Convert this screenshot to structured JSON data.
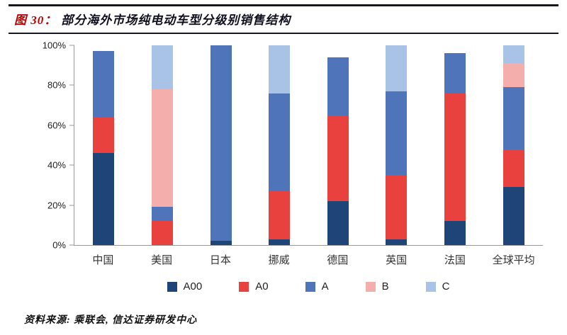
{
  "header": {
    "figure_label": "图 30：",
    "title": "部分海外市场纯电动车型分级别销售结构"
  },
  "footer": {
    "source": "资料来源: 乘联会, 信达证券研发中心"
  },
  "chart_data": {
    "type": "bar",
    "stacked": true,
    "percent": true,
    "title": "部分海外市场纯电动车型分级别销售结构",
    "categories": [
      "中国",
      "美国",
      "日本",
      "挪威",
      "德国",
      "英国",
      "法国",
      "全球平均"
    ],
    "series": [
      {
        "name": "A00",
        "color": "#1f4478",
        "values": [
          46,
          0,
          2,
          3,
          22,
          3,
          12,
          29
        ]
      },
      {
        "name": "A0",
        "color": "#e9413e",
        "values": [
          18,
          12,
          0,
          24,
          43,
          32,
          64,
          19
        ]
      },
      {
        "name": "A",
        "color": "#4f74b9",
        "values": [
          33,
          7,
          98,
          49,
          29,
          42,
          20,
          31
        ]
      },
      {
        "name": "B",
        "color": "#f4afac",
        "values": [
          0,
          59,
          0,
          0,
          0,
          0,
          0,
          12
        ]
      },
      {
        "name": "C",
        "color": "#a9c3e6",
        "values": [
          0,
          22,
          0,
          24,
          0,
          23,
          0,
          9
        ]
      }
    ],
    "ylabel_ticks": [
      "0%",
      "20%",
      "40%",
      "60%",
      "80%",
      "100%"
    ],
    "ylim": [
      0,
      100
    ],
    "grid": false,
    "legend_position": "bottom"
  }
}
